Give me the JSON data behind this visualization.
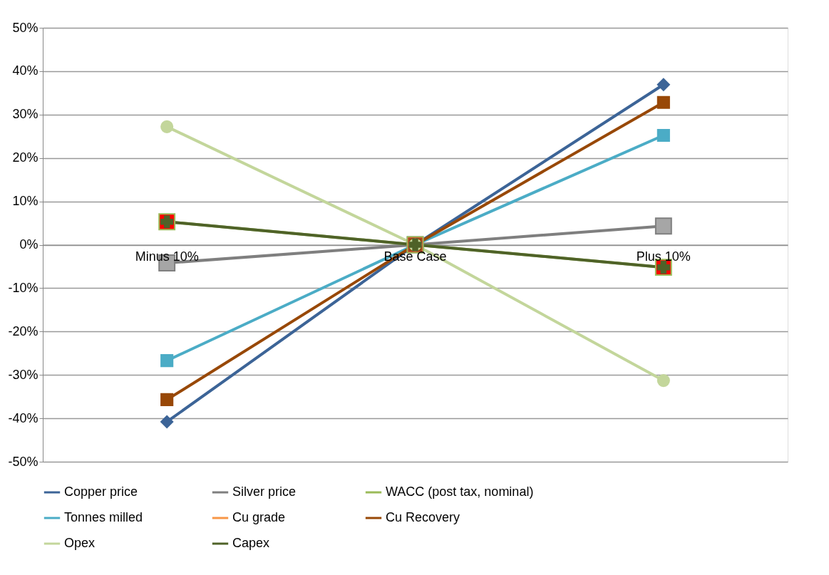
{
  "chart_data": {
    "type": "line",
    "categories": [
      "Minus 10%",
      "Base Case",
      "Plus 10%"
    ],
    "series": [
      {
        "name": "Copper price",
        "color": "#3c6497",
        "marker": "diamond",
        "values": [
          -40.8,
          0,
          36.9
        ]
      },
      {
        "name": "Silver price",
        "color": "#7f7f7f",
        "marker": "square",
        "colors": [
          "#a6a6a6",
          "#a6a6a6",
          "#a6a6a6"
        ],
        "values": [
          -4.2,
          0,
          4.3
        ]
      },
      {
        "name": "WACC (post tax, nominal)",
        "color": "#9bbb59",
        "marker": "square",
        "colors": [
          "#ff0000",
          "#ff0000",
          "#ff0000"
        ],
        "values": [
          5.3,
          0,
          -5.2
        ]
      },
      {
        "name": "Tonnes milled",
        "color": "#4bacc6",
        "marker": "square",
        "values": [
          -26.7,
          0,
          25.2
        ]
      },
      {
        "name": "Cu grade",
        "color": "#f79646",
        "marker": "none",
        "values": [
          null,
          null,
          null
        ]
      },
      {
        "name": "Cu Recovery",
        "color": "#984807",
        "marker": "square",
        "values": [
          -35.7,
          0,
          32.8
        ]
      },
      {
        "name": "Opex",
        "color": "#c3d69b",
        "marker": "circle",
        "values": [
          27.2,
          0,
          -31.3
        ]
      },
      {
        "name": "Capex",
        "color": "#4f6228",
        "marker": "cross",
        "values": [
          5.3,
          0,
          -5.2
        ]
      }
    ],
    "ylim": [
      -50,
      50
    ],
    "yticks": [
      {
        "value": -50,
        "label": "-50%"
      },
      {
        "value": -40,
        "label": "-40%"
      },
      {
        "value": -30,
        "label": "-30%"
      },
      {
        "value": -20,
        "label": "-20%"
      },
      {
        "value": -10,
        "label": "-10%"
      },
      {
        "value": 0,
        "label": "0%"
      },
      {
        "value": 10,
        "label": "10%"
      },
      {
        "value": 20,
        "label": "20%"
      },
      {
        "value": 30,
        "label": "30%"
      },
      {
        "value": 40,
        "label": "40%"
      },
      {
        "value": 50,
        "label": "50%"
      }
    ],
    "grid": "y",
    "legend": "bottom",
    "line_style": "solid"
  }
}
